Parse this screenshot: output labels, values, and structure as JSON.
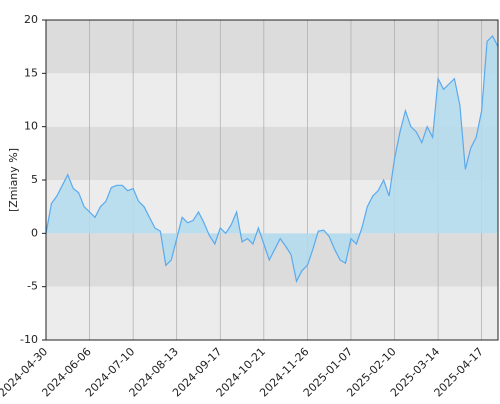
{
  "chart_data": {
    "type": "area",
    "y_label": "[Zmiany %]",
    "categories": [
      "2024-04-30",
      null,
      null,
      null,
      null,
      null,
      null,
      null,
      "2024-06-06",
      null,
      null,
      null,
      null,
      null,
      null,
      null,
      "2024-07-10",
      null,
      null,
      null,
      null,
      null,
      null,
      null,
      "2024-08-13",
      null,
      null,
      null,
      null,
      null,
      null,
      null,
      "2024-09-17",
      null,
      null,
      null,
      null,
      null,
      null,
      null,
      "2024-10-21",
      null,
      null,
      null,
      null,
      null,
      null,
      null,
      "2024-11-26",
      null,
      null,
      null,
      null,
      null,
      null,
      null,
      "2025-01-07",
      null,
      null,
      null,
      null,
      null,
      null,
      null,
      "2025-02-10",
      null,
      null,
      null,
      null,
      null,
      null,
      null,
      "2025-03-14",
      null,
      null,
      null,
      null,
      null,
      null,
      null,
      "2025-04-17",
      null,
      null,
      null
    ],
    "values": [
      0,
      2.8,
      3.5,
      4.5,
      5.5,
      4.2,
      3.8,
      2.5,
      2.0,
      1.5,
      2.5,
      3.0,
      4.3,
      4.5,
      4.5,
      4.0,
      4.2,
      3.0,
      2.5,
      1.5,
      0.5,
      0.2,
      -3,
      -2.5,
      -0.5,
      1.5,
      1.0,
      1.2,
      2.0,
      1.0,
      -0.2,
      -1.0,
      0.5,
      0,
      0.8,
      2.0,
      -0.8,
      -0.5,
      -1.0,
      0.5,
      -1.0,
      -2.5,
      -1.5,
      -0.5,
      -1.2,
      -2.0,
      -4.5,
      -3.5,
      -3.0,
      -1.5,
      0.2,
      0.3,
      -0.3,
      -1.5,
      -2.5,
      -2.8,
      -0.5,
      -1.0,
      0.5,
      2.5,
      3.5,
      4.0,
      5.0,
      3.5,
      7.0,
      9.5,
      11.5,
      10.0,
      9.5,
      8.5,
      10.0,
      9.0,
      14.5,
      13.5,
      14.0,
      14.5,
      12.0,
      6.0,
      8.0,
      9.0,
      11.5,
      18.0,
      18.5,
      17.5
    ],
    "color": "#5aaaee",
    "fill": "#b3dcef",
    "ylim": [
      -10,
      20
    ],
    "yticks": [
      -10,
      -5,
      0,
      5,
      10,
      15,
      20
    ],
    "band_colors": [
      "#ececec",
      "#dcdcdc"
    ]
  }
}
